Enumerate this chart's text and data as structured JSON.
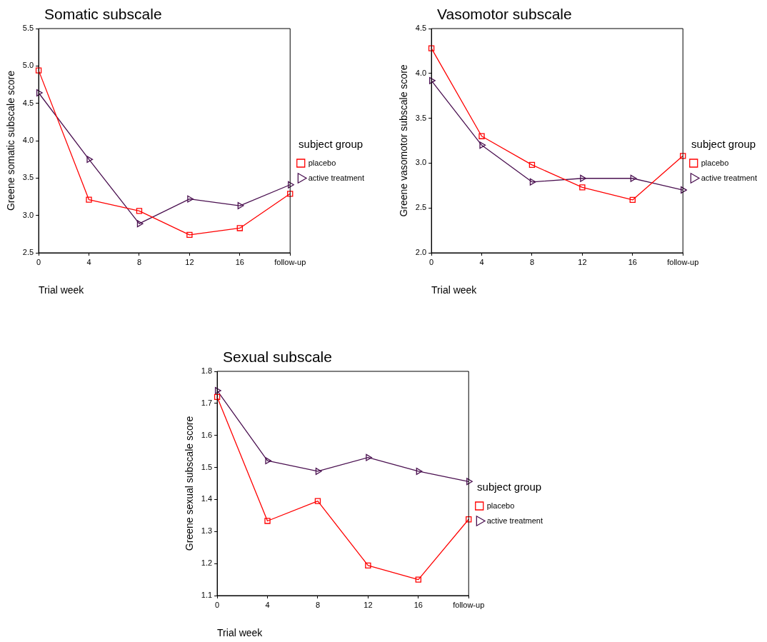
{
  "chart_data": [
    {
      "type": "line",
      "title": "Somatic subscale",
      "xlabel": "Trial week",
      "ylabel": "Greene somatic subscale score",
      "legend_title": "subject group",
      "legend": "right",
      "grid": false,
      "categories": [
        "0",
        "4",
        "8",
        "12",
        "16",
        "follow-up"
      ],
      "ylim": [
        2.5,
        5.5
      ],
      "yticks": [
        {
          "value": 2.5,
          "label": "2.5"
        },
        {
          "value": 3,
          "label": "3.0"
        },
        {
          "value": 3.5,
          "label": "3.5"
        },
        {
          "value": 4,
          "label": "4.0"
        },
        {
          "value": 4.5,
          "label": "4.5"
        },
        {
          "value": 5,
          "label": "5.0"
        },
        {
          "value": 5.5,
          "label": "5.5"
        }
      ],
      "series": [
        {
          "name": "placebo",
          "color": "#ff0000",
          "marker": "square",
          "values": [
            4.94,
            3.21,
            3.06,
            2.74,
            2.83,
            3.29
          ]
        },
        {
          "name": "active treatment",
          "color": "#4a1050",
          "marker": "triangle",
          "values": [
            4.64,
            3.75,
            2.89,
            3.22,
            3.13,
            3.41
          ]
        }
      ]
    },
    {
      "type": "line",
      "title": "Vasomotor subscale",
      "xlabel": "Trial week",
      "ylabel": "Greene vasomotor subscale score",
      "legend_title": "subject group",
      "legend": "right",
      "grid": false,
      "categories": [
        "0",
        "4",
        "8",
        "12",
        "16",
        "follow-up"
      ],
      "ylim": [
        2.0,
        4.5
      ],
      "yticks": [
        {
          "value": 2,
          "label": "2.0"
        },
        {
          "value": 2.5,
          "label": "2.5"
        },
        {
          "value": 3,
          "label": "3.0"
        },
        {
          "value": 3.5,
          "label": "3.5"
        },
        {
          "value": 4,
          "label": "4.0"
        },
        {
          "value": 4.5,
          "label": "4.5"
        }
      ],
      "series": [
        {
          "name": "placebo",
          "color": "#ff0000",
          "marker": "square",
          "values": [
            4.28,
            3.3,
            2.98,
            2.73,
            2.59,
            3.08
          ]
        },
        {
          "name": "active treatment",
          "color": "#4a1050",
          "marker": "triangle",
          "values": [
            3.92,
            3.2,
            2.79,
            2.83,
            2.83,
            2.7
          ]
        }
      ]
    },
    {
      "type": "line",
      "title": "Sexual subscale",
      "xlabel": "Trial week",
      "ylabel": "Greene sexual subscale score",
      "legend_title": "subject group",
      "legend": "right",
      "grid": false,
      "categories": [
        "0",
        "4",
        "8",
        "12",
        "16",
        "follow-up"
      ],
      "ylim": [
        1.1,
        1.8
      ],
      "yticks": [
        1.1,
        1.2,
        1.3,
        1.4,
        1.5,
        1.6,
        1.7,
        1.8
      ],
      "series": [
        {
          "name": "placebo",
          "color": "#ff0000",
          "marker": "square",
          "values": [
            1.72,
            1.333,
            1.395,
            1.194,
            1.15,
            1.338
          ]
        },
        {
          "name": "active treatment",
          "color": "#4a1050",
          "marker": "triangle",
          "values": [
            1.74,
            1.521,
            1.488,
            1.531,
            1.488,
            1.456
          ]
        }
      ]
    }
  ]
}
